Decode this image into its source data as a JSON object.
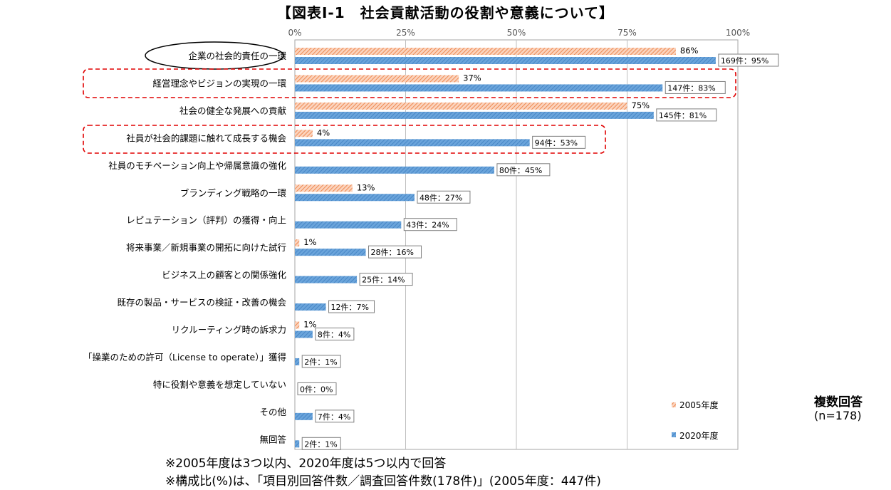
{
  "title": "【図表Ⅰ-1　社会貢献活動の役割や意義について】",
  "chart_data": {
    "type": "bar",
    "orientation": "horizontal",
    "title": "【図表Ⅰ-1　社会貢献活動の役割や意義について】",
    "xlim": [
      0,
      100
    ],
    "x_ticks": [
      "0%",
      "25%",
      "50%",
      "75%",
      "100%"
    ],
    "grid": true,
    "legend_placement": "bottom-right",
    "categories": [
      "企業の社会的責任の一環",
      "経営理念やビジョンの実現の一環",
      "社会の健全な発展への貢献",
      "社員が社会的課題に触れて成長する機会",
      "社員のモチベーション向上や帰属意識の強化",
      "ブランディング戦略の一環",
      "レピュテーション（評判）の獲得・向上",
      "将来事業／新規事業の開拓に向けた試行",
      "ビジネス上の顧客との関係強化",
      "既存の製品・サービスの検証・改善の機会",
      "リクルーティング時の訴求力",
      "「操業のための許可（License to operate）」獲得",
      "特に役割や意義を想定していない",
      "その他",
      "無回答"
    ],
    "series": [
      {
        "name": "2005年度",
        "values": [
          86,
          37,
          75,
          4,
          null,
          13,
          null,
          1,
          null,
          null,
          1,
          null,
          null,
          null,
          null
        ],
        "labels": [
          "86%",
          "37%",
          "75%",
          "4%",
          "",
          "13%",
          "",
          "1%",
          "",
          "",
          "1%",
          "",
          "",
          "",
          ""
        ],
        "color": "#f4a582"
      },
      {
        "name": "2020年度",
        "values": [
          95,
          83,
          81,
          53,
          45,
          27,
          24,
          16,
          14,
          7,
          4,
          1,
          0,
          4,
          1
        ],
        "labels": [
          "169件：95%",
          "147件：83%",
          "145件：81%",
          "94件：53%",
          "80件：45%",
          "48件：27%",
          "43件：24%",
          "28件：16%",
          "25件：14%",
          "12件：7%",
          "8件：4%",
          "2件：1%",
          "0件：0%",
          "7件：4%",
          "2件：1%"
        ],
        "color": "#5b9bd5"
      }
    ],
    "highlight_ellipse": "企業の社会的責任の一環",
    "highlight_dashed": [
      "経営理念やビジョンの実現の一環",
      "社員が社会的課題に触れて成長する機会"
    ],
    "highlight_color": "#e00000"
  },
  "side_note": {
    "label": "複数回答",
    "n": "(n=178)"
  },
  "footnotes": [
    "※2005年度は3つ以内、2020年度は5つ以内で回答",
    "※構成比(%)は、「項目別回答件数／調査回答件数(178件)」(2005年度：447件)"
  ]
}
